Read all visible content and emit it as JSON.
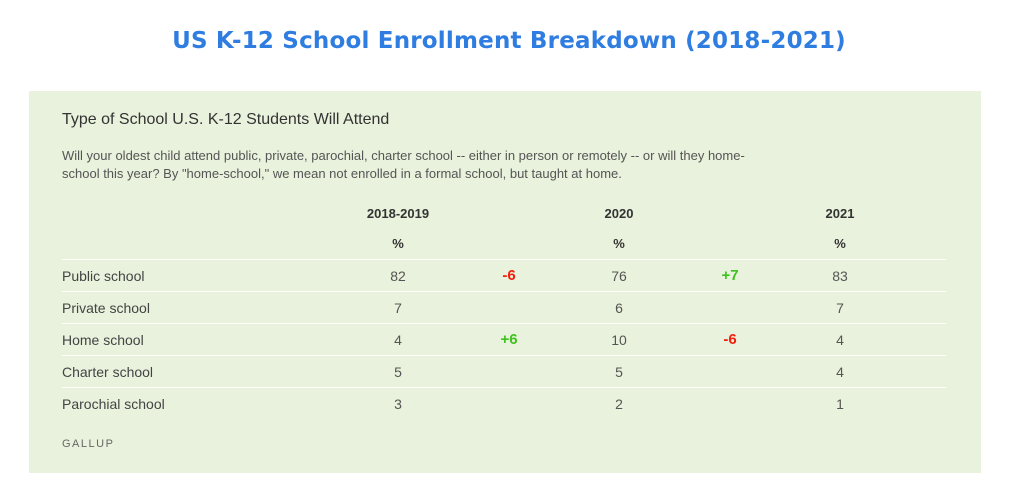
{
  "page": {
    "title": "US K-12 School Enrollment Breakdown (2018-2021)"
  },
  "colors": {
    "title": "#2f7de1",
    "panel_background": "#e9f2dc",
    "increase": "#3ec21f",
    "decrease": "#f2200f"
  },
  "chart_data": {
    "type": "table",
    "title": "Type of School U.S. K-12 Students Will Attend",
    "subtitle": "Will your oldest child attend public, private, parochial, charter school -- either in person or remotely -- or will they home-school this year? By \"home-school,\" we mean not enrolled in a formal school, but taught at home.",
    "columns": [
      "2018-2019",
      "2020",
      "2021"
    ],
    "unit": "%",
    "rows": [
      {
        "label": "Public school",
        "values": [
          "82",
          "76",
          "83"
        ],
        "changes": [
          "-6",
          "+7"
        ]
      },
      {
        "label": "Private school",
        "values": [
          "7",
          "6",
          "7"
        ],
        "changes": [
          "",
          ""
        ]
      },
      {
        "label": "Home school",
        "values": [
          "4",
          "10",
          "4"
        ],
        "changes": [
          "+6",
          "-6"
        ]
      },
      {
        "label": "Charter school",
        "values": [
          "5",
          "5",
          "4"
        ],
        "changes": [
          "",
          ""
        ]
      },
      {
        "label": "Parochial school",
        "values": [
          "3",
          "2",
          "1"
        ],
        "changes": [
          "",
          ""
        ]
      }
    ],
    "source": "GALLUP"
  }
}
